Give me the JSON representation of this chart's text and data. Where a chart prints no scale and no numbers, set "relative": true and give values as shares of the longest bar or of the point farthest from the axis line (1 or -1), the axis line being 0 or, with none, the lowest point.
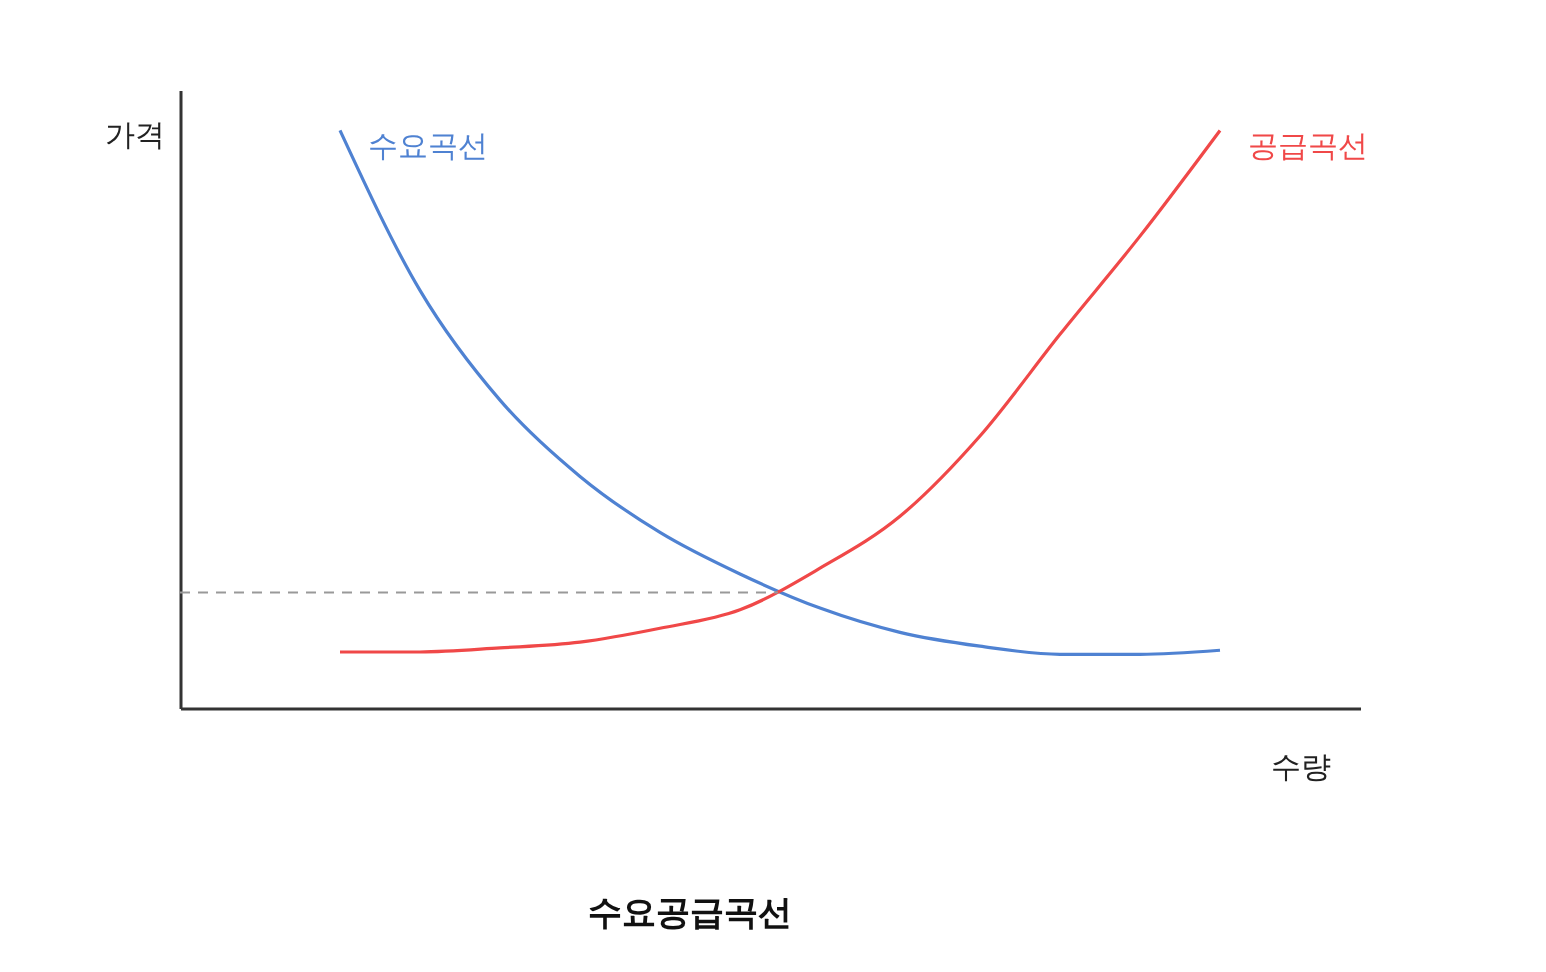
{
  "chart_data": {
    "type": "line",
    "title": "수요공급곡선",
    "xlabel": "수량",
    "ylabel": "가격",
    "relative": true,
    "categories": [
      null,
      null,
      null,
      null,
      null,
      null,
      null,
      null,
      null,
      null,
      null,
      null
    ],
    "series": [
      {
        "name": "수요곡선",
        "color": "#4f82d2",
        "values": [
          1.0,
          0.723,
          0.533,
          0.401,
          0.304,
          0.232,
          0.173,
          0.131,
          0.107,
          0.093,
          0.093,
          0.1
        ]
      },
      {
        "name": "공급곡선",
        "color": "#f04848",
        "values": [
          0.097,
          0.097,
          0.104,
          0.114,
          0.138,
          0.17,
          0.242,
          0.332,
          0.471,
          0.647,
          0.817,
          1.0
        ]
      }
    ],
    "ref_lines": [
      {
        "axis": "y",
        "value": 0.2,
        "color": "#999999",
        "line_style": "dashed"
      }
    ],
    "grid": false,
    "legend": false,
    "marker": "none",
    "line_style": "solid"
  }
}
